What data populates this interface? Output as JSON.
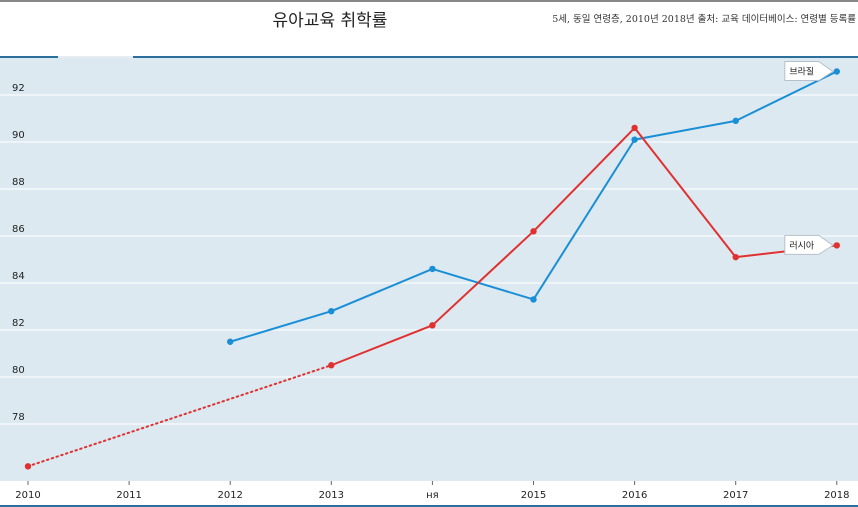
{
  "header": {
    "title": "유아교육 취학률",
    "subtitle": "5세, 동일 연령층, 2010년 2018년 출처: 교육 데이터베이스: 연령별 등록률"
  },
  "chart_data": {
    "type": "line",
    "x": [
      2010,
      2011,
      2012,
      2013,
      2014,
      2015,
      2016,
      2017,
      2018
    ],
    "x_tick_labels": [
      "2010",
      "2011",
      "2012",
      "2013",
      "ня",
      "2015",
      "2016",
      "2017",
      "2018"
    ],
    "ylim": [
      76,
      94
    ],
    "y_ticks": [
      78,
      80,
      82,
      84,
      86,
      88,
      90,
      92
    ],
    "grid": true,
    "series": [
      {
        "name": "브라질",
        "color": "#1a8fd6",
        "points": [
          {
            "x": 2012,
            "y": 81.5
          },
          {
            "x": 2013,
            "y": 82.8
          },
          {
            "x": 2014,
            "y": 84.6
          },
          {
            "x": 2015,
            "y": 83.3
          },
          {
            "x": 2016,
            "y": 90.1
          },
          {
            "x": 2017,
            "y": 90.9
          },
          {
            "x": 2018,
            "y": 93.0
          }
        ],
        "dotted_segments": []
      },
      {
        "name": "러시아",
        "color": "#e03131",
        "points": [
          {
            "x": 2010,
            "y": 76.2
          },
          {
            "x": 2013,
            "y": 80.5
          },
          {
            "x": 2014,
            "y": 82.2
          },
          {
            "x": 2015,
            "y": 86.2
          },
          {
            "x": 2016,
            "y": 90.6
          },
          {
            "x": 2017,
            "y": 85.1
          },
          {
            "x": 2018,
            "y": 85.6
          }
        ],
        "dotted_segments": [
          [
            2010,
            2013
          ]
        ]
      }
    ]
  },
  "style": {
    "plot_background": "#dde9f1",
    "grid_color": "#ffffff",
    "tick_color": "#222222"
  }
}
